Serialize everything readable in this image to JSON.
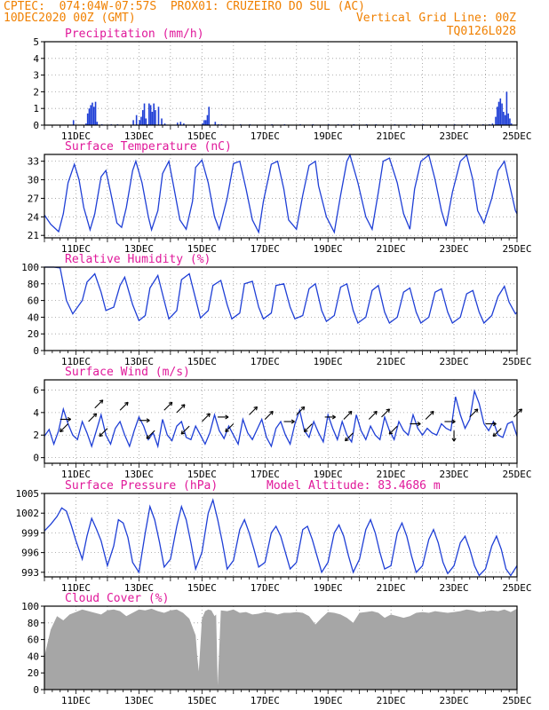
{
  "header": {
    "line1_left": "CPTEC:  074:04W-07:57S  PROX01: CRUZEIRO DO SUL (AC)",
    "line2_left": "10DEC2020 00Z (GMT)",
    "line2_right": "Vertical Grid Line: 00Z",
    "line3_right": "TQ0126L028"
  },
  "colors": {
    "header": "#f08000",
    "title": "#e0189a",
    "series": "#1f3fd6",
    "cloud": "#a6a6a6",
    "wind_arrow": "#000000"
  },
  "x_tick_labels": [
    "11DEC",
    "13DEC",
    "15DEC",
    "17DEC",
    "19DEC",
    "21DEC",
    "23DEC",
    "25DEC"
  ],
  "chart_data": [
    {
      "type": "bar",
      "title": "Precipitation (mm/h)",
      "x_unit": "day_of_december",
      "x_range": [
        10,
        25
      ],
      "ylim": [
        0,
        5
      ],
      "yticks": [
        0,
        1,
        2,
        3,
        4,
        5
      ],
      "x": [
        10.9,
        11.3,
        11.35,
        11.4,
        11.45,
        11.5,
        11.55,
        11.6,
        11.65,
        11.8,
        12.1,
        12.3,
        12.8,
        12.9,
        13.0,
        13.05,
        13.1,
        13.15,
        13.2,
        13.25,
        13.3,
        13.35,
        13.4,
        13.45,
        13.5,
        13.6,
        13.7,
        13.8,
        14.2,
        14.3,
        14.4,
        15.0,
        15.05,
        15.1,
        15.15,
        15.2,
        15.4,
        15.5,
        15.6,
        16.2,
        16.5,
        17.2,
        17.6,
        18.1,
        18.5,
        19.0,
        19.3,
        19.8,
        20.2,
        20.5,
        21.1,
        21.6,
        22.0,
        22.5,
        23.0,
        23.4,
        23.9,
        24.1,
        24.2,
        24.3,
        24.35,
        24.4,
        24.45,
        24.5,
        24.55,
        24.6,
        24.65,
        24.7,
        24.75,
        24.8
      ],
      "values": [
        0.3,
        0.1,
        0.7,
        1.0,
        1.2,
        1.35,
        1.1,
        1.4,
        0.2,
        0.05,
        0.05,
        0.05,
        0.3,
        0.6,
        0.3,
        0.5,
        0.9,
        1.3,
        0.4,
        0.05,
        1.3,
        1.2,
        0.8,
        1.3,
        0.9,
        1.1,
        0.4,
        0.1,
        0.15,
        0.2,
        0.1,
        0.1,
        0.3,
        0.3,
        0.6,
        1.1,
        0.2,
        0.05,
        0.05,
        0.05,
        0.05,
        0.05,
        0.05,
        0.05,
        0.05,
        0.05,
        0.05,
        0.05,
        0.05,
        0.05,
        0.05,
        0.05,
        0.05,
        0.05,
        0.05,
        0.05,
        0.05,
        0.05,
        0.1,
        0.5,
        1.1,
        1.4,
        1.6,
        1.3,
        0.8,
        0.6,
        2.0,
        0.7,
        0.4,
        0.1
      ]
    },
    {
      "type": "line",
      "title": "Surface Temperature (nC)",
      "x_unit": "day_of_december",
      "x_range": [
        10,
        25
      ],
      "ylim": [
        20.6,
        34.1
      ],
      "yticks": [
        21,
        24,
        27,
        30,
        33
      ],
      "x": [
        10.0,
        10.2,
        10.45,
        10.6,
        10.75,
        10.95,
        11.1,
        11.25,
        11.45,
        11.6,
        11.8,
        11.95,
        12.1,
        12.3,
        12.45,
        12.6,
        12.8,
        12.9,
        13.1,
        13.3,
        13.4,
        13.6,
        13.75,
        13.95,
        14.1,
        14.3,
        14.5,
        14.7,
        14.8,
        15.0,
        15.2,
        15.4,
        15.55,
        15.8,
        16.0,
        16.2,
        16.4,
        16.6,
        16.8,
        16.95,
        17.2,
        17.4,
        17.6,
        17.75,
        18.0,
        18.2,
        18.4,
        18.6,
        18.7,
        18.95,
        19.2,
        19.4,
        19.6,
        19.7,
        19.95,
        20.2,
        20.4,
        20.6,
        20.75,
        20.95,
        21.2,
        21.4,
        21.6,
        21.75,
        21.95,
        22.2,
        22.4,
        22.6,
        22.75,
        22.95,
        23.2,
        23.4,
        23.6,
        23.75,
        23.95,
        24.2,
        24.4,
        24.6,
        24.75,
        24.95,
        25.0
      ],
      "values": [
        24.3,
        22.8,
        21.6,
        24.5,
        29.5,
        32.5,
        30.0,
        25.5,
        21.9,
        24.5,
        30.5,
        31.5,
        28.0,
        23.0,
        22.3,
        25.5,
        31.5,
        33.0,
        29.5,
        24.0,
        21.9,
        25.0,
        31.0,
        33.0,
        29.0,
        23.5,
        22.0,
        26.5,
        32.0,
        33.2,
        29.5,
        24.0,
        22.0,
        27.0,
        32.6,
        33.0,
        28.5,
        23.5,
        21.5,
        26.5,
        32.5,
        33.0,
        28.5,
        23.5,
        22.0,
        27.5,
        32.3,
        33.0,
        29.0,
        24.0,
        21.5,
        27.5,
        33.0,
        34.0,
        29.5,
        24.0,
        22.0,
        28.0,
        33.0,
        33.5,
        29.5,
        24.5,
        22.0,
        28.5,
        33.0,
        34.0,
        30.0,
        25.0,
        22.5,
        28.0,
        33.0,
        34.0,
        30.0,
        25.0,
        23.0,
        27.0,
        31.5,
        33.0,
        29.5,
        25.0,
        24.5
      ]
    },
    {
      "type": "line",
      "title": "Relative Humidity (%)",
      "x_unit": "day_of_december",
      "x_range": [
        10,
        25
      ],
      "ylim": [
        0,
        100
      ],
      "yticks": [
        0,
        20,
        40,
        60,
        80,
        100
      ],
      "x": [
        10.0,
        10.3,
        10.5,
        10.7,
        10.9,
        11.2,
        11.35,
        11.6,
        11.8,
        11.95,
        12.2,
        12.4,
        12.55,
        12.8,
        13.0,
        13.2,
        13.35,
        13.6,
        13.8,
        13.95,
        14.2,
        14.35,
        14.6,
        14.8,
        14.95,
        15.2,
        15.35,
        15.6,
        15.8,
        15.95,
        16.2,
        16.35,
        16.6,
        16.8,
        16.95,
        17.2,
        17.35,
        17.6,
        17.8,
        17.95,
        18.2,
        18.4,
        18.6,
        18.8,
        18.95,
        19.2,
        19.4,
        19.6,
        19.8,
        19.95,
        20.2,
        20.4,
        20.6,
        20.8,
        20.95,
        21.2,
        21.4,
        21.6,
        21.8,
        21.95,
        22.2,
        22.4,
        22.6,
        22.8,
        22.95,
        23.2,
        23.4,
        23.6,
        23.8,
        23.95,
        24.2,
        24.4,
        24.6,
        24.75,
        24.95,
        25.0
      ],
      "values": [
        100,
        100,
        99,
        60,
        44,
        60,
        82,
        92,
        70,
        48,
        52,
        78,
        88,
        55,
        36,
        42,
        75,
        90,
        60,
        38,
        48,
        85,
        92,
        62,
        39,
        48,
        78,
        84,
        55,
        38,
        45,
        80,
        83,
        52,
        38,
        45,
        78,
        80,
        52,
        38,
        42,
        74,
        80,
        48,
        35,
        42,
        76,
        80,
        48,
        33,
        40,
        72,
        78,
        46,
        33,
        40,
        70,
        75,
        46,
        33,
        40,
        70,
        74,
        46,
        33,
        40,
        68,
        72,
        46,
        33,
        42,
        65,
        77,
        58,
        44,
        46
      ]
    },
    {
      "type": "line",
      "title": "Surface Wind (m/s)",
      "x_unit": "day_of_december",
      "x_range": [
        10,
        25
      ],
      "ylim": [
        -0.5,
        6.9
      ],
      "yticks": [
        0,
        2,
        4,
        6
      ],
      "x": [
        10.0,
        10.15,
        10.3,
        10.45,
        10.6,
        10.75,
        10.9,
        11.05,
        11.2,
        11.35,
        11.5,
        11.65,
        11.8,
        11.95,
        12.1,
        12.25,
        12.4,
        12.55,
        12.7,
        12.85,
        13.0,
        13.15,
        13.3,
        13.45,
        13.6,
        13.75,
        13.9,
        14.05,
        14.2,
        14.35,
        14.5,
        14.65,
        14.8,
        14.95,
        15.1,
        15.25,
        15.4,
        15.55,
        15.7,
        15.85,
        16.0,
        16.15,
        16.3,
        16.45,
        16.6,
        16.75,
        16.9,
        17.05,
        17.2,
        17.35,
        17.5,
        17.65,
        17.8,
        17.95,
        18.1,
        18.25,
        18.4,
        18.55,
        18.7,
        18.85,
        19.0,
        19.15,
        19.3,
        19.45,
        19.6,
        19.75,
        19.9,
        20.05,
        20.2,
        20.35,
        20.5,
        20.65,
        20.8,
        20.95,
        21.1,
        21.25,
        21.4,
        21.55,
        21.7,
        21.85,
        22.0,
        22.15,
        22.3,
        22.45,
        22.6,
        22.75,
        22.9,
        23.05,
        23.2,
        23.35,
        23.5,
        23.65,
        23.8,
        23.95,
        24.1,
        24.25,
        24.4,
        24.55,
        24.7,
        24.85,
        25.0
      ],
      "values": [
        1.9,
        2.5,
        1.2,
        2.4,
        4.3,
        3.0,
        2.0,
        1.6,
        3.2,
        2.2,
        1.0,
        2.4,
        3.8,
        2.0,
        1.2,
        2.6,
        3.2,
        2.0,
        1.0,
        2.4,
        3.6,
        2.8,
        1.6,
        2.2,
        1.0,
        3.4,
        2.0,
        1.5,
        2.8,
        3.2,
        1.8,
        1.6,
        2.8,
        2.0,
        1.2,
        2.2,
        3.8,
        2.4,
        1.7,
        2.8,
        2.0,
        1.2,
        3.4,
        2.2,
        1.6,
        2.5,
        3.4,
        1.8,
        1.0,
        2.6,
        3.2,
        2.0,
        1.2,
        3.0,
        4.2,
        2.4,
        1.8,
        3.2,
        2.2,
        1.4,
        3.8,
        2.6,
        1.6,
        3.2,
        2.0,
        1.4,
        3.8,
        2.4,
        1.6,
        2.8,
        2.0,
        1.6,
        3.6,
        2.4,
        1.6,
        3.2,
        2.4,
        2.0,
        3.8,
        2.6,
        2.0,
        2.6,
        2.2,
        2.0,
        3.0,
        2.6,
        2.4,
        5.4,
        3.8,
        2.6,
        3.4,
        5.9,
        4.8,
        3.0,
        2.4,
        3.2,
        2.0,
        1.8,
        3.0,
        3.2,
        1.9
      ],
      "arrows": [
        {
          "x": 10.5,
          "y": 3.4,
          "dir": "E"
        },
        {
          "x": 10.75,
          "y": 3.0,
          "dir": "SW"
        },
        {
          "x": 11.4,
          "y": 3.2,
          "dir": "NE"
        },
        {
          "x": 11.6,
          "y": 4.4,
          "dir": "NE"
        },
        {
          "x": 12.0,
          "y": 2.6,
          "dir": "SW"
        },
        {
          "x": 12.4,
          "y": 4.2,
          "dir": "NE"
        },
        {
          "x": 13.0,
          "y": 3.3,
          "dir": "E"
        },
        {
          "x": 13.5,
          "y": 2.4,
          "dir": "SW"
        },
        {
          "x": 13.8,
          "y": 4.2,
          "dir": "NE"
        },
        {
          "x": 14.2,
          "y": 4.0,
          "dir": "NE"
        },
        {
          "x": 14.6,
          "y": 2.8,
          "dir": "SW"
        },
        {
          "x": 15.0,
          "y": 3.2,
          "dir": "NE"
        },
        {
          "x": 15.5,
          "y": 3.6,
          "dir": "E"
        },
        {
          "x": 16.0,
          "y": 3.0,
          "dir": "SW"
        },
        {
          "x": 16.5,
          "y": 3.8,
          "dir": "NE"
        },
        {
          "x": 17.0,
          "y": 3.4,
          "dir": "NE"
        },
        {
          "x": 17.6,
          "y": 3.2,
          "dir": "E"
        },
        {
          "x": 18.0,
          "y": 3.8,
          "dir": "NE"
        },
        {
          "x": 18.5,
          "y": 3.0,
          "dir": "SW"
        },
        {
          "x": 18.9,
          "y": 3.6,
          "dir": "E"
        },
        {
          "x": 19.5,
          "y": 3.4,
          "dir": "NE"
        },
        {
          "x": 19.8,
          "y": 2.2,
          "dir": "SW"
        },
        {
          "x": 20.3,
          "y": 3.4,
          "dir": "NE"
        },
        {
          "x": 20.7,
          "y": 3.6,
          "dir": "NE"
        },
        {
          "x": 21.2,
          "y": 2.8,
          "dir": "SW"
        },
        {
          "x": 21.6,
          "y": 3.0,
          "dir": "E"
        },
        {
          "x": 22.1,
          "y": 3.4,
          "dir": "NE"
        },
        {
          "x": 22.7,
          "y": 3.2,
          "dir": "E"
        },
        {
          "x": 23.0,
          "y": 2.4,
          "dir": "S"
        },
        {
          "x": 23.5,
          "y": 3.6,
          "dir": "NE"
        },
        {
          "x": 24.0,
          "y": 3.0,
          "dir": "E"
        },
        {
          "x": 24.5,
          "y": 2.6,
          "dir": "SW"
        },
        {
          "x": 24.9,
          "y": 3.6,
          "dir": "NE"
        }
      ]
    },
    {
      "type": "line",
      "title": "Surface Pressure (hPa)",
      "subtitle": "Model Altitude: 83.4686 m",
      "x_unit": "day_of_december",
      "x_range": [
        10,
        25
      ],
      "ylim": [
        992.3,
        1005.0
      ],
      "yticks": [
        993,
        996,
        999,
        1002,
        1005
      ],
      "x": [
        10.0,
        10.2,
        10.4,
        10.55,
        10.7,
        10.85,
        11.0,
        11.2,
        11.35,
        11.5,
        11.65,
        11.8,
        12.0,
        12.2,
        12.35,
        12.5,
        12.65,
        12.8,
        13.0,
        13.2,
        13.35,
        13.5,
        13.65,
        13.8,
        14.0,
        14.2,
        14.35,
        14.5,
        14.65,
        14.8,
        15.0,
        15.2,
        15.35,
        15.5,
        15.65,
        15.8,
        16.0,
        16.2,
        16.35,
        16.5,
        16.65,
        16.8,
        17.0,
        17.2,
        17.35,
        17.5,
        17.65,
        17.8,
        18.0,
        18.2,
        18.35,
        18.5,
        18.65,
        18.8,
        19.0,
        19.2,
        19.35,
        19.5,
        19.65,
        19.8,
        20.0,
        20.2,
        20.35,
        20.5,
        20.65,
        20.8,
        21.0,
        21.2,
        21.35,
        21.5,
        21.65,
        21.8,
        22.0,
        22.2,
        22.35,
        22.5,
        22.65,
        22.8,
        23.0,
        23.2,
        23.35,
        23.5,
        23.65,
        23.8,
        24.0,
        24.2,
        24.35,
        24.5,
        24.65,
        24.8,
        25.0
      ],
      "values": [
        999.3,
        1000.3,
        1001.5,
        1002.8,
        1002.3,
        1000.2,
        997.8,
        995.0,
        998.5,
        1001.2,
        999.6,
        997.8,
        994.0,
        997.0,
        1001.0,
        1000.5,
        998.3,
        994.5,
        993.0,
        999.0,
        1003.0,
        1001.0,
        997.6,
        993.8,
        995.0,
        1000.0,
        1003.0,
        1001.0,
        997.5,
        993.5,
        996.0,
        1002.0,
        1004.0,
        1001.0,
        997.5,
        993.5,
        994.8,
        999.5,
        1001.0,
        999.0,
        996.5,
        993.8,
        994.5,
        999.0,
        1000.0,
        998.5,
        996.0,
        993.5,
        994.5,
        999.5,
        1000.0,
        998.0,
        995.5,
        993.0,
        994.5,
        999.0,
        1000.2,
        998.5,
        995.5,
        993.0,
        995.0,
        999.5,
        1001.0,
        999.0,
        996.0,
        993.5,
        994.0,
        999.0,
        1000.5,
        998.5,
        995.5,
        993.0,
        994.0,
        998.0,
        999.5,
        997.5,
        994.5,
        992.8,
        994.0,
        997.5,
        998.5,
        996.5,
        994.0,
        992.5,
        993.5,
        997.0,
        998.5,
        996.5,
        993.5,
        992.5,
        994.0
      ]
    },
    {
      "type": "area",
      "title": "Cloud Cover (%)",
      "x_unit": "day_of_december",
      "x_range": [
        10,
        25
      ],
      "ylim": [
        0,
        100
      ],
      "yticks": [
        0,
        20,
        40,
        60,
        80,
        100
      ],
      "x": [
        10.0,
        10.2,
        10.4,
        10.6,
        10.8,
        11.0,
        11.2,
        11.4,
        11.6,
        11.8,
        12.0,
        12.2,
        12.4,
        12.6,
        12.8,
        13.0,
        13.2,
        13.4,
        13.6,
        13.8,
        14.0,
        14.2,
        14.4,
        14.6,
        14.8,
        14.85,
        14.9,
        15.0,
        15.1,
        15.2,
        15.3,
        15.4,
        15.45,
        15.5,
        15.6,
        15.8,
        16.0,
        16.2,
        16.4,
        16.6,
        16.8,
        17.0,
        17.2,
        17.4,
        17.6,
        17.8,
        18.0,
        18.2,
        18.4,
        18.6,
        18.8,
        19.0,
        19.2,
        19.4,
        19.6,
        19.8,
        20.0,
        20.2,
        20.4,
        20.6,
        20.8,
        21.0,
        21.2,
        21.4,
        21.6,
        21.8,
        22.0,
        22.2,
        22.4,
        22.6,
        22.8,
        23.0,
        23.2,
        23.4,
        23.6,
        23.8,
        24.0,
        24.2,
        24.4,
        24.6,
        24.8,
        25.0
      ],
      "values": [
        40,
        72,
        88,
        83,
        90,
        93,
        96,
        94,
        92,
        90,
        95,
        96,
        94,
        88,
        92,
        96,
        95,
        97,
        94,
        92,
        95,
        96,
        92,
        85,
        65,
        40,
        22,
        85,
        94,
        96,
        95,
        88,
        90,
        5,
        95,
        94,
        96,
        92,
        93,
        90,
        91,
        93,
        92,
        90,
        92,
        92,
        93,
        92,
        88,
        78,
        86,
        93,
        92,
        90,
        86,
        80,
        92,
        93,
        94,
        92,
        86,
        90,
        88,
        86,
        88,
        92,
        93,
        92,
        94,
        93,
        92,
        93,
        94,
        96,
        95,
        93,
        94,
        95,
        94,
        96,
        93,
        97
      ]
    }
  ]
}
